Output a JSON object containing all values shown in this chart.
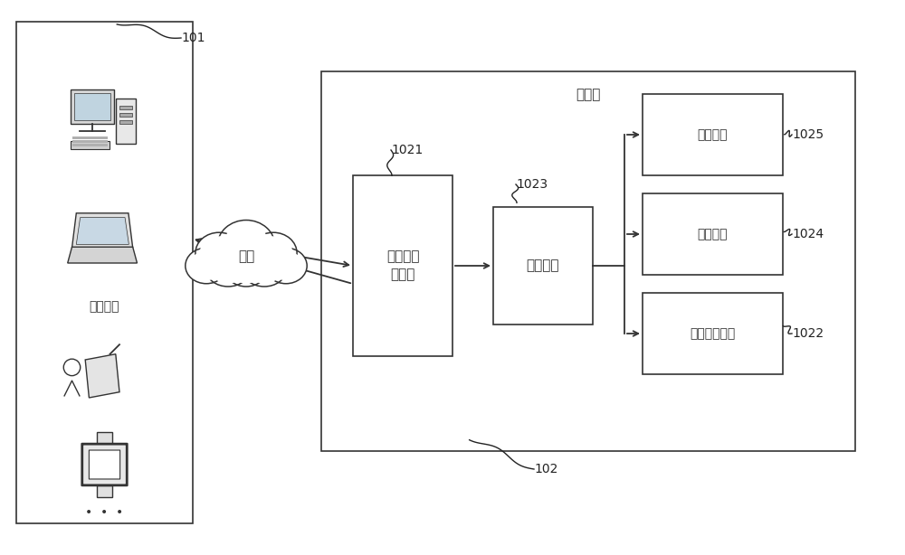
{
  "bg_color": "#ffffff",
  "fig_width": 10.0,
  "fig_height": 6.14,
  "dpi": 100,
  "label_101": "101",
  "label_102": "102",
  "label_1021": "1021",
  "label_1022": "1022",
  "label_1023": "1023",
  "label_1024": "1024",
  "label_1025": "1025",
  "ctrl_box_label": "打印机控\n制模块",
  "monitor_box_label": "监测模块",
  "hmi_box_label": "人机交互模块",
  "timer_box_label": "计时模块",
  "storage_box_label": "存储模块",
  "cloud_label": "网络",
  "printer_label": "打印机",
  "portable_label": "便携电脑",
  "line_color": "#333333",
  "font_size_box": 11,
  "font_size_label": 10,
  "font_size_ref": 10
}
